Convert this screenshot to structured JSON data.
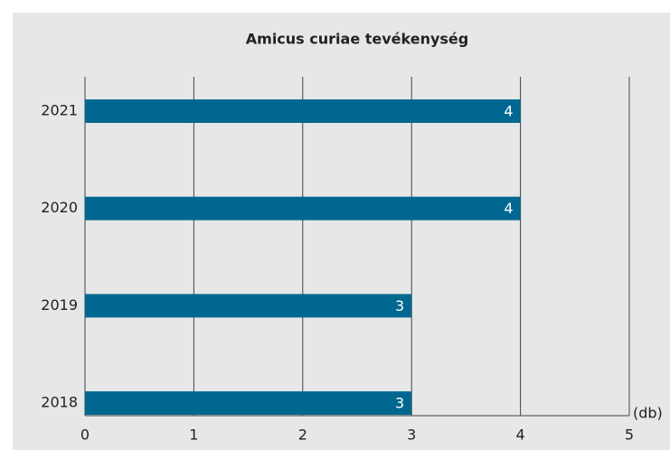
{
  "chart_data": {
    "type": "bar",
    "orientation": "horizontal",
    "title": "Amicus curiae tevékenység",
    "categories": [
      "2021",
      "2020",
      "2019",
      "2018"
    ],
    "values": [
      4,
      4,
      3,
      3
    ],
    "color": "#006890",
    "xlim": [
      0,
      5
    ],
    "xticks": [
      0,
      1,
      2,
      3,
      4,
      5
    ],
    "x_label": "(db)",
    "grid": true
  }
}
